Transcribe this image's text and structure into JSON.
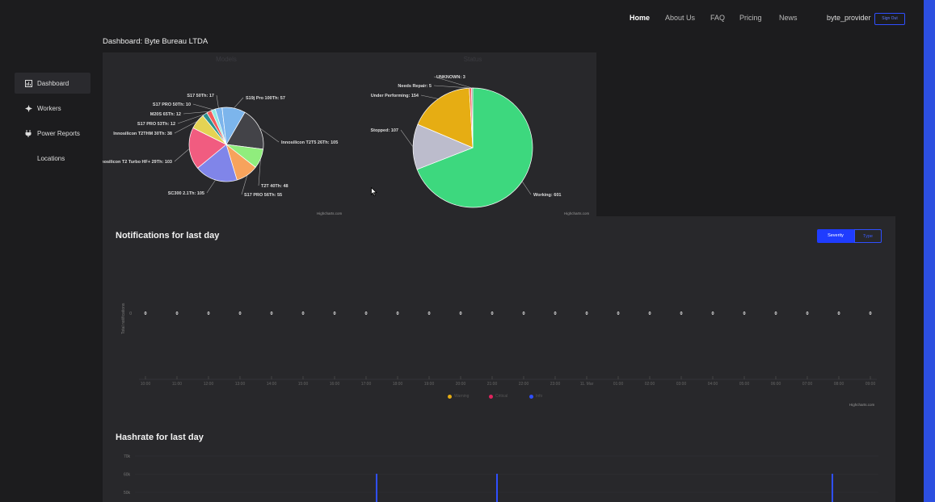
{
  "nav": {
    "home": "Home",
    "about": "About Us",
    "faq": "FAQ",
    "pricing": "Pricing",
    "news": "News",
    "user": "byte_provider",
    "signout": "Sign Out"
  },
  "page": {
    "title": "Dashboard: Byte Bureau LTDA"
  },
  "sidebar": {
    "items": [
      {
        "label": "Dashboard",
        "icon": "dashboard-icon",
        "active": true
      },
      {
        "label": "Workers",
        "icon": "workers-icon"
      },
      {
        "label": "Power Reports",
        "icon": "power-icon"
      },
      {
        "label": "Locations",
        "icon": ""
      }
    ]
  },
  "pies": {
    "models": {
      "title": "Models",
      "credit": "Highcharts.com"
    },
    "status": {
      "title": "Status",
      "credit": "Highcharts.com"
    }
  },
  "chart_data": [
    {
      "type": "pie",
      "title": "Models",
      "slices": [
        {
          "label": "Innosilicon T2T5 26Th: 105",
          "value": 105,
          "color": "#434348"
        },
        {
          "label": "T2T 40Th: 48",
          "value": 48,
          "color": "#90ed7d"
        },
        {
          "label": "S17 PRO 56Th: 55",
          "value": 55,
          "color": "#f7a35c"
        },
        {
          "label": "SC300 2.1Th: 105",
          "value": 105,
          "color": "#8085e9"
        },
        {
          "label": "Innosilicon T2 Turbo HF+ 29Th: 103",
          "value": 103,
          "color": "#f15c80"
        },
        {
          "label": "Innosilicon T2THM 30Th: 38",
          "value": 38,
          "color": "#e4d354"
        },
        {
          "label": "S17 PRO 53Th: 12",
          "value": 12,
          "color": "#2b908f"
        },
        {
          "label": "M20S 65Th: 12",
          "value": 12,
          "color": "#f45b5b"
        },
        {
          "label": "S17 PRO 50Th: 10",
          "value": 10,
          "color": "#91e8e1"
        },
        {
          "label": "S17 50Th: 17",
          "value": 17,
          "color": "#7cb5ec"
        },
        {
          "label": "S19j Pro 100Th: 57",
          "value": 57,
          "color": "#7cb5ec"
        }
      ]
    },
    {
      "type": "pie",
      "title": "Status",
      "slices": [
        {
          "label": "Working: 601",
          "value": 601,
          "color": "#3dd87e"
        },
        {
          "label": "Stopped: 107",
          "value": 107,
          "color": "#bcbccc"
        },
        {
          "label": "Under Performing: 154",
          "value": 154,
          "color": "#e6ad13"
        },
        {
          "label": "Needs Repair: 5",
          "value": 5,
          "color": "#f45b5b"
        },
        {
          "label": "UNKNOWN: 3",
          "value": 3,
          "color": "#8d8d93"
        }
      ]
    },
    {
      "type": "line",
      "title": "Notifications for last day",
      "ylabel": "Total notifications",
      "x": [
        "10:00",
        "11:00",
        "12:00",
        "13:00",
        "14:00",
        "15:00",
        "16:00",
        "17:00",
        "18:00",
        "19:00",
        "20:00",
        "21:00",
        "22:00",
        "23:00",
        "11. Mar",
        "01:00",
        "02:00",
        "03:00",
        "04:00",
        "05:00",
        "06:00",
        "07:00",
        "08:00",
        "09:00"
      ],
      "values": [
        0,
        0,
        0,
        0,
        0,
        0,
        0,
        0,
        0,
        0,
        0,
        0,
        0,
        0,
        0,
        0,
        0,
        0,
        0,
        0,
        0,
        0,
        0,
        0
      ],
      "yticks": [
        "0"
      ],
      "legend": [
        {
          "name": "Warning",
          "color": "#e6ad13"
        },
        {
          "name": "Critical",
          "color": "#e0245e"
        },
        {
          "name": "Info",
          "color": "#2f4fff"
        }
      ],
      "credit": "Highcharts.com"
    },
    {
      "type": "bar",
      "title": "Hashrate for last day",
      "yticks": [
        "70k",
        "60k",
        "50k"
      ],
      "ylim": [
        50000,
        70000
      ]
    }
  ],
  "notifications": {
    "title": "Notifications for last day",
    "btn_severity": "Severity",
    "btn_type": "Type",
    "credit": "Highcharts.com"
  },
  "hashrate": {
    "title": "Hashrate for last day"
  }
}
